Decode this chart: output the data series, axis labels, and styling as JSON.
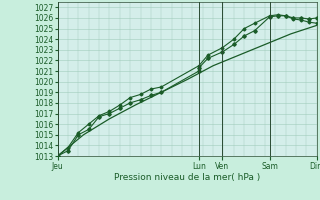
{
  "xlabel": "Pression niveau de la mer( hPa )",
  "bg_color": "#c8eedd",
  "plot_bg_color": "#d4eeea",
  "grid_color": "#a0ccbc",
  "line_color": "#1a5c28",
  "vline_color": "#2a4a32",
  "ylim": [
    1013,
    1027.5
  ],
  "ytick_min": 1013,
  "ytick_max": 1027,
  "xlabel_fontsize": 6.5,
  "tick_fontsize": 5.5,
  "day_labels": [
    "Jeu",
    "Lun",
    "Ven",
    "Sam",
    "Dim"
  ],
  "day_positions": [
    0.0,
    0.545,
    0.636,
    0.818,
    1.0
  ],
  "line1_x": [
    0.0,
    0.04,
    0.08,
    0.12,
    0.16,
    0.2,
    0.24,
    0.28,
    0.32,
    0.36,
    0.4,
    0.545,
    0.545,
    0.58,
    0.636,
    0.68,
    0.72,
    0.76,
    0.818,
    0.85,
    0.88,
    0.91,
    0.94,
    0.97,
    1.0
  ],
  "line1_y": [
    1013.0,
    1013.5,
    1015.0,
    1015.5,
    1016.7,
    1017.0,
    1017.5,
    1018.0,
    1018.3,
    1018.7,
    1019.0,
    1021.0,
    1021.3,
    1022.2,
    1022.8,
    1023.5,
    1024.3,
    1024.8,
    1026.1,
    1026.2,
    1026.2,
    1026.0,
    1026.0,
    1025.9,
    1026.0
  ],
  "line2_x": [
    0.0,
    0.04,
    0.08,
    0.12,
    0.16,
    0.2,
    0.24,
    0.28,
    0.32,
    0.36,
    0.4,
    0.545,
    0.58,
    0.636,
    0.68,
    0.72,
    0.76,
    0.818,
    0.85,
    0.88,
    0.91,
    0.94,
    0.97,
    1.0
  ],
  "line2_y": [
    1013.0,
    1013.8,
    1015.2,
    1016.0,
    1016.8,
    1017.2,
    1017.8,
    1018.5,
    1018.8,
    1019.3,
    1019.5,
    1021.5,
    1022.5,
    1023.2,
    1024.0,
    1025.0,
    1025.5,
    1026.2,
    1026.3,
    1026.2,
    1025.9,
    1025.8,
    1025.6,
    1025.5
  ],
  "line3_x": [
    0.0,
    0.1,
    0.2,
    0.3,
    0.4,
    0.5,
    0.6,
    0.7,
    0.8,
    0.9,
    1.0
  ],
  "line3_y": [
    1013.0,
    1015.0,
    1016.5,
    1017.8,
    1019.0,
    1020.2,
    1021.5,
    1022.5,
    1023.5,
    1024.5,
    1025.3
  ]
}
